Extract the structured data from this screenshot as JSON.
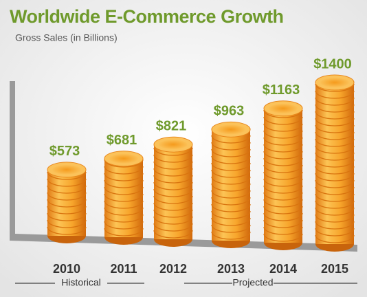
{
  "chart_data": {
    "type": "bar",
    "title": "Worldwide E-Commerce Growth",
    "subtitle": "Gross Sales (in Billions)",
    "categories": [
      "2010",
      "2011",
      "2012",
      "2013",
      "2014",
      "2015"
    ],
    "values": [
      573,
      681,
      821,
      963,
      1163,
      1400
    ],
    "value_labels": [
      "$573",
      "$681",
      "$821",
      "$963",
      "$1163",
      "$1400"
    ],
    "annotations": [
      "Historical",
      "Projected"
    ],
    "color": "#f5a02a",
    "label_color": "#6f9a2c"
  }
}
